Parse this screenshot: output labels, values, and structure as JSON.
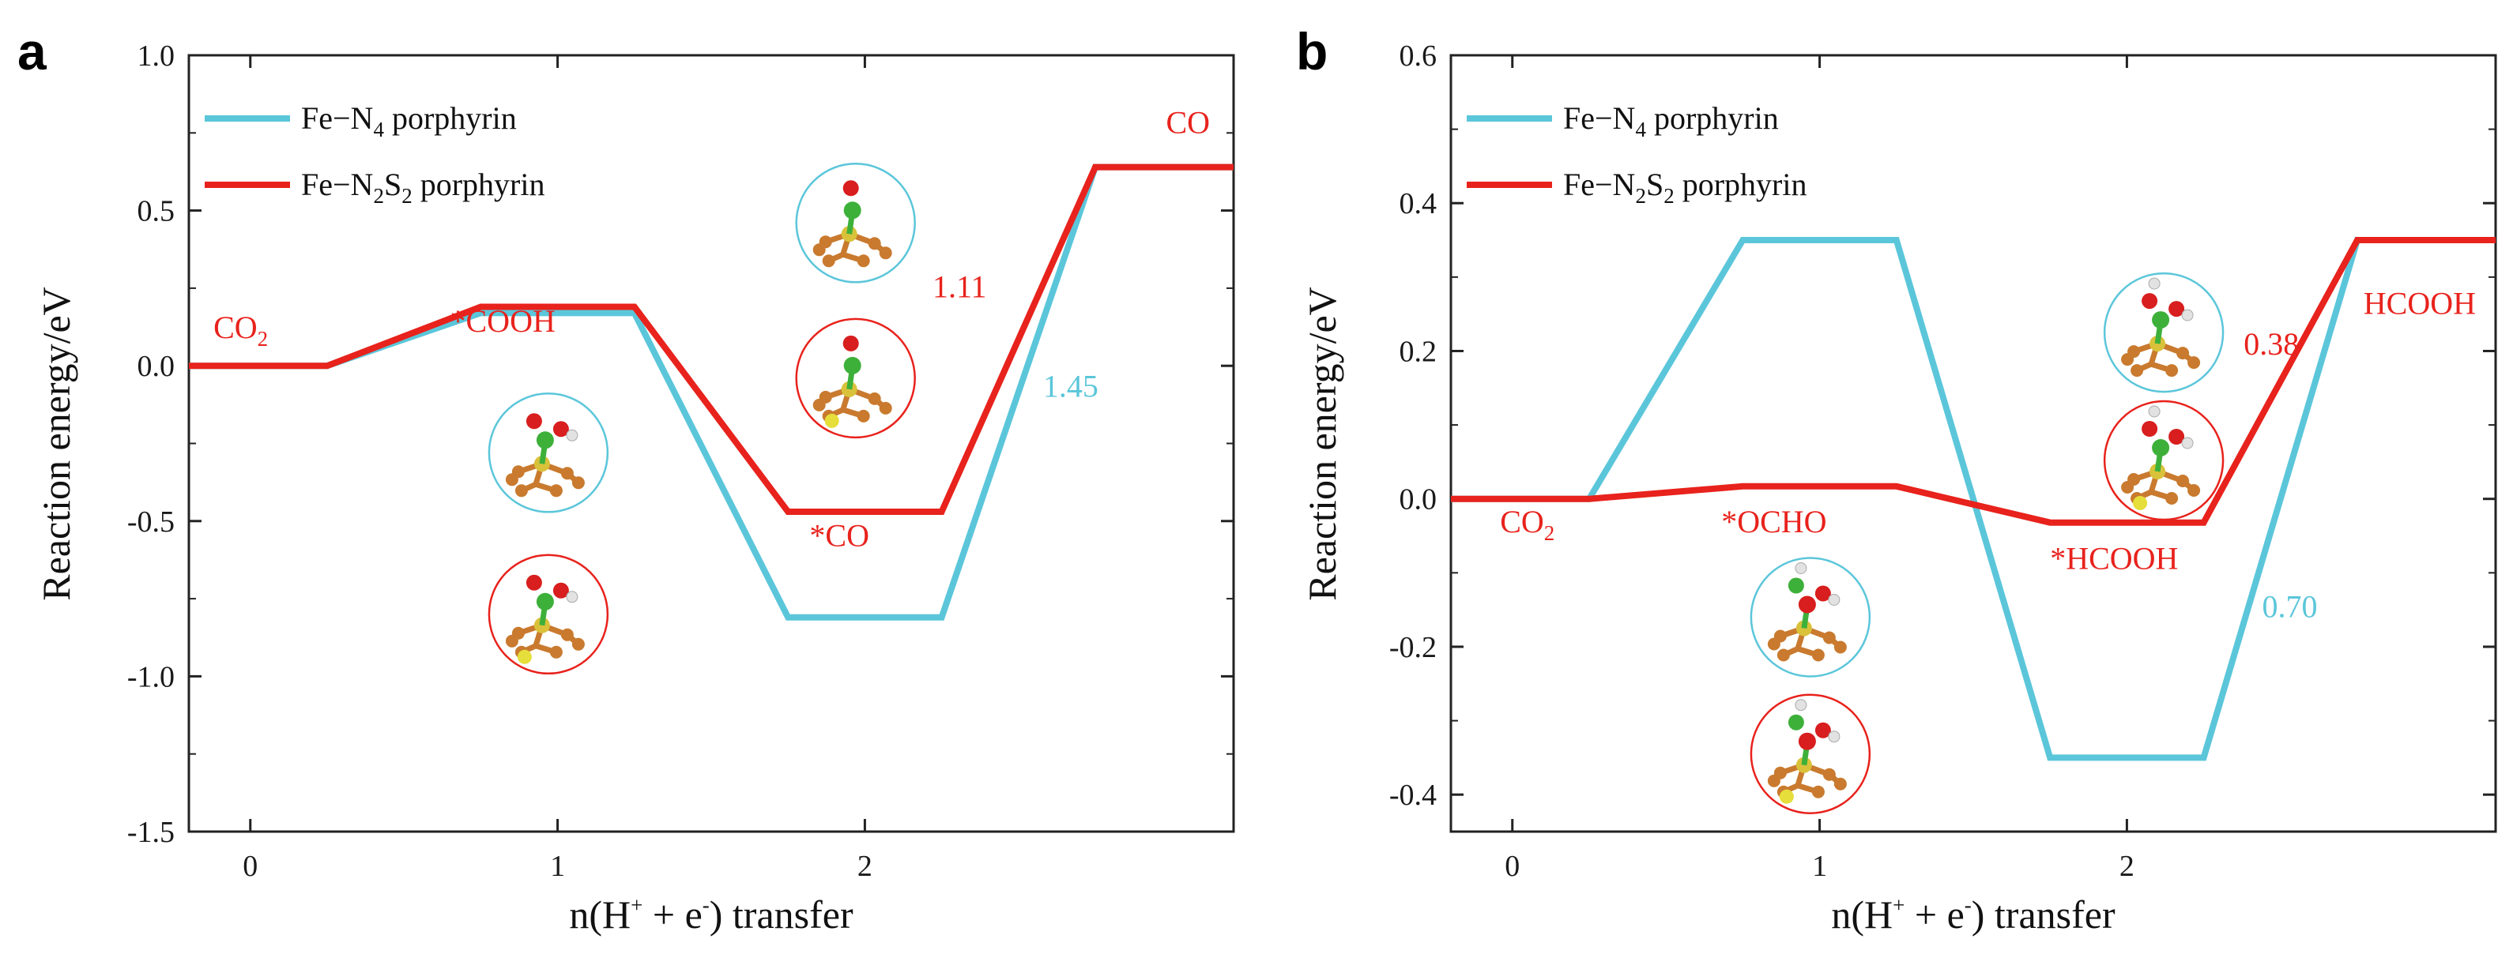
{
  "colors": {
    "fe_n4": "#5bc6da",
    "fe_n2s2": "#e8221c",
    "annotation_red": "#e8221c",
    "annotation_blue": "#5bc6da",
    "atom_c": "#3db03a",
    "atom_o": "#d81e1e",
    "atom_h": "#e2e2e2",
    "atom_fe": "#d9c23a",
    "atom_n": "#c97a2e",
    "atom_s": "#e6de3a"
  },
  "chart_data": [
    {
      "panel_label": "a",
      "type": "line",
      "title": "",
      "xlabel": {
        "prefix": "n(H",
        "sup1": "+",
        "mid": " + e",
        "sup2": "-",
        "suffix": ") transfer"
      },
      "ylabel": "Reaction energy/eV",
      "xlim": [
        -0.2,
        3.2
      ],
      "ylim": [
        -1.5,
        1.0
      ],
      "yticks": [
        "1.0",
        "0.5",
        "0.0",
        "-0.5",
        "-1.0",
        "-1.5"
      ],
      "ytick_values": [
        1.0,
        0.5,
        0.0,
        -0.5,
        -1.0,
        -1.5
      ],
      "xticks": [
        "0",
        "1",
        "2"
      ],
      "xtick_values": [
        0,
        1,
        2
      ],
      "legend": [
        {
          "name": "Fe−N",
          "sub": "4",
          "suffix": " porphyrin",
          "color": "#5bc6da"
        },
        {
          "name": "Fe−N",
          "sub": "2",
          "mid": "S",
          "sub2": "2",
          "suffix": " porphyrin",
          "color": "#e8221c"
        }
      ],
      "series": [
        {
          "name": "Fe-N4 porphyrin",
          "color": "#5bc6da",
          "x": [
            -0.2,
            0.25,
            0.75,
            1.25,
            1.75,
            2.25,
            2.75,
            3.2
          ],
          "y": [
            0.0,
            0.0,
            0.17,
            0.17,
            -0.81,
            -0.81,
            0.64,
            0.64
          ]
        },
        {
          "name": "Fe-N2S2 porphyrin",
          "color": "#e8221c",
          "x": [
            -0.2,
            0.25,
            0.75,
            1.25,
            1.75,
            2.25,
            2.75,
            3.2
          ],
          "y": [
            0.0,
            0.0,
            0.19,
            0.19,
            -0.47,
            -0.47,
            0.64,
            0.64
          ]
        }
      ],
      "annotations": [
        {
          "id": "co2",
          "main": "CO",
          "sub": "2",
          "x": -0.12,
          "y": 0.09,
          "color": "red"
        },
        {
          "id": "cooh",
          "main": "*COOH",
          "x": 0.65,
          "y": 0.11,
          "color": "red"
        },
        {
          "id": "co",
          "main": "*CO",
          "x": 1.82,
          "y": -0.58,
          "color": "red"
        },
        {
          "id": "co-final",
          "main": "CO",
          "x": 2.98,
          "y": 0.75,
          "color": "red"
        },
        {
          "id": "barrier-red",
          "main": "1.11",
          "x": 2.22,
          "y": 0.22,
          "color": "red"
        },
        {
          "id": "barrier-blue",
          "main": "1.45",
          "x": 2.58,
          "y": -0.1,
          "color": "blue"
        }
      ],
      "molecules": [
        {
          "id": "cooh-n4",
          "x": 0.97,
          "y": -0.28,
          "ring": "blue",
          "kind": "cooh",
          "metal": "fe"
        },
        {
          "id": "cooh-n2s2",
          "x": 0.97,
          "y": -0.8,
          "ring": "red",
          "kind": "cooh",
          "metal": "s"
        },
        {
          "id": "co-n4",
          "x": 1.97,
          "y": 0.46,
          "ring": "blue",
          "kind": "co",
          "metal": "fe"
        },
        {
          "id": "co-n2s2",
          "x": 1.97,
          "y": -0.04,
          "ring": "red",
          "kind": "co",
          "metal": "s"
        }
      ]
    },
    {
      "panel_label": "b",
      "type": "line",
      "title": "",
      "xlabel": {
        "prefix": "n(H",
        "sup1": "+",
        "mid": " + e",
        "sup2": "-",
        "suffix": ") transfer"
      },
      "ylabel": "Reaction energy/eV",
      "xlim": [
        -0.2,
        3.2
      ],
      "ylim": [
        -0.45,
        0.6
      ],
      "yticks": [
        "0.6",
        "0.4",
        "0.2",
        "0.0",
        "-0.2",
        "-0.4"
      ],
      "ytick_values": [
        0.6,
        0.4,
        0.2,
        0.0,
        -0.2,
        -0.4
      ],
      "xticks": [
        "0",
        "1",
        "2"
      ],
      "xtick_values": [
        0,
        1,
        2
      ],
      "legend": [
        {
          "name": "Fe−N",
          "sub": "4",
          "suffix": " porphyrin",
          "color": "#5bc6da"
        },
        {
          "name": "Fe−N",
          "sub": "2",
          "mid": "S",
          "sub2": "2",
          "suffix": " porphyrin",
          "color": "#e8221c"
        }
      ],
      "series": [
        {
          "name": "Fe-N4 porphyrin",
          "color": "#5bc6da",
          "x": [
            -0.2,
            0.25,
            0.75,
            1.25,
            1.75,
            2.25,
            2.75,
            3.2
          ],
          "y": [
            0.0,
            0.0,
            0.35,
            0.35,
            -0.35,
            -0.35,
            0.35,
            0.35
          ]
        },
        {
          "name": "Fe-N2S2 porphyrin",
          "color": "#e8221c",
          "x": [
            -0.2,
            0.25,
            0.75,
            1.25,
            1.75,
            2.25,
            2.75,
            3.2
          ],
          "y": [
            0.0,
            0.0,
            0.017,
            0.017,
            -0.032,
            -0.032,
            0.35,
            0.35
          ]
        }
      ],
      "annotations": [
        {
          "id": "co2",
          "main": "CO",
          "sub": "2",
          "x": -0.04,
          "y": -0.045,
          "color": "red"
        },
        {
          "id": "ocho",
          "main": "*OCHO",
          "x": 0.68,
          "y": -0.045,
          "color": "red"
        },
        {
          "id": "hcooh-mid",
          "main": "*HCOOH",
          "x": 1.75,
          "y": -0.095,
          "color": "red"
        },
        {
          "id": "hcooh-final",
          "main": "HCOOH",
          "x": 2.77,
          "y": 0.25,
          "color": "red"
        },
        {
          "id": "barrier-red",
          "main": "0.38",
          "x": 2.38,
          "y": 0.195,
          "color": "red"
        },
        {
          "id": "barrier-blue",
          "main": "0.70",
          "x": 2.44,
          "y": -0.16,
          "color": "blue"
        }
      ],
      "molecules": [
        {
          "id": "ocho-n4",
          "x": 0.97,
          "y": -0.16,
          "ring": "blue",
          "kind": "ocho",
          "metal": "fe"
        },
        {
          "id": "ocho-n2s2",
          "x": 0.97,
          "y": -0.345,
          "ring": "red",
          "kind": "ocho",
          "metal": "s"
        },
        {
          "id": "hcooh-n4",
          "x": 2.12,
          "y": 0.225,
          "ring": "blue",
          "kind": "hcooh",
          "metal": "fe"
        },
        {
          "id": "hcooh-n2s2",
          "x": 2.12,
          "y": 0.052,
          "ring": "red",
          "kind": "hcooh",
          "metal": "s"
        }
      ]
    }
  ]
}
